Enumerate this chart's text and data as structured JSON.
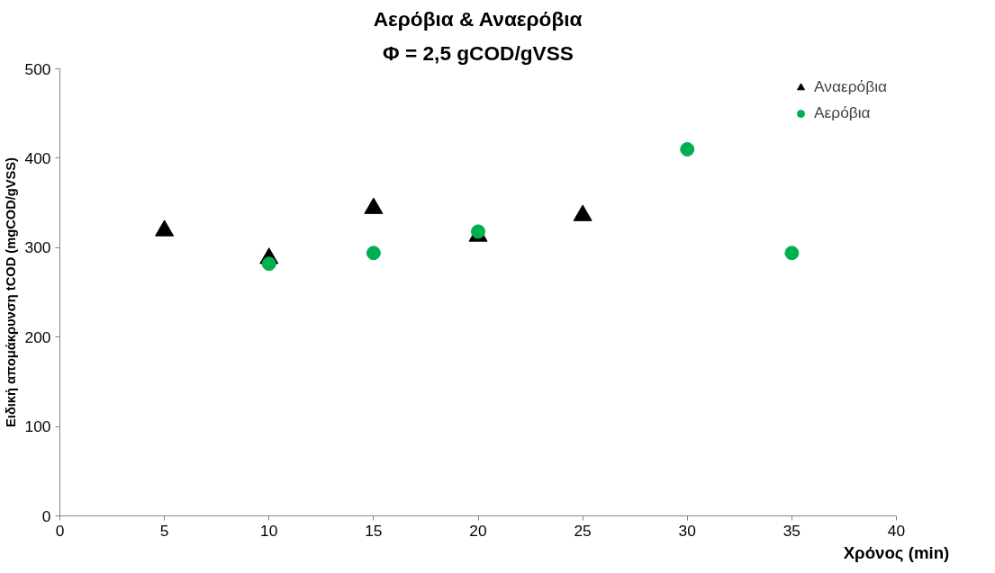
{
  "chart_data": {
    "type": "scatter",
    "title": "Αερόβια & Αναερόβια",
    "subtitle": "Φ = 2,5 gCOD/gVSS",
    "xlabel": "Χρόνος (min)",
    "ylabel": "Ειδική απομάκρυνση tCOD (mgCOD/gVSS)",
    "x": [
      5,
      10,
      15,
      20,
      25,
      30,
      35
    ],
    "series": [
      {
        "name": "Αναερόβια",
        "color": "#000000",
        "marker": "triangle",
        "values": [
          319,
          288,
          344,
          313,
          336,
          null,
          null
        ]
      },
      {
        "name": "Αερόβια",
        "color": "#00b050",
        "marker": "circle",
        "values": [
          null,
          282,
          294,
          318,
          null,
          410,
          294
        ]
      }
    ],
    "xlim": [
      0,
      40
    ],
    "xticks": [
      0,
      5,
      10,
      15,
      20,
      25,
      30,
      35,
      40
    ],
    "ylim": [
      0,
      500
    ],
    "yticks": [
      0,
      100,
      200,
      300,
      400,
      500
    ],
    "grid": false,
    "legend": "top right"
  }
}
